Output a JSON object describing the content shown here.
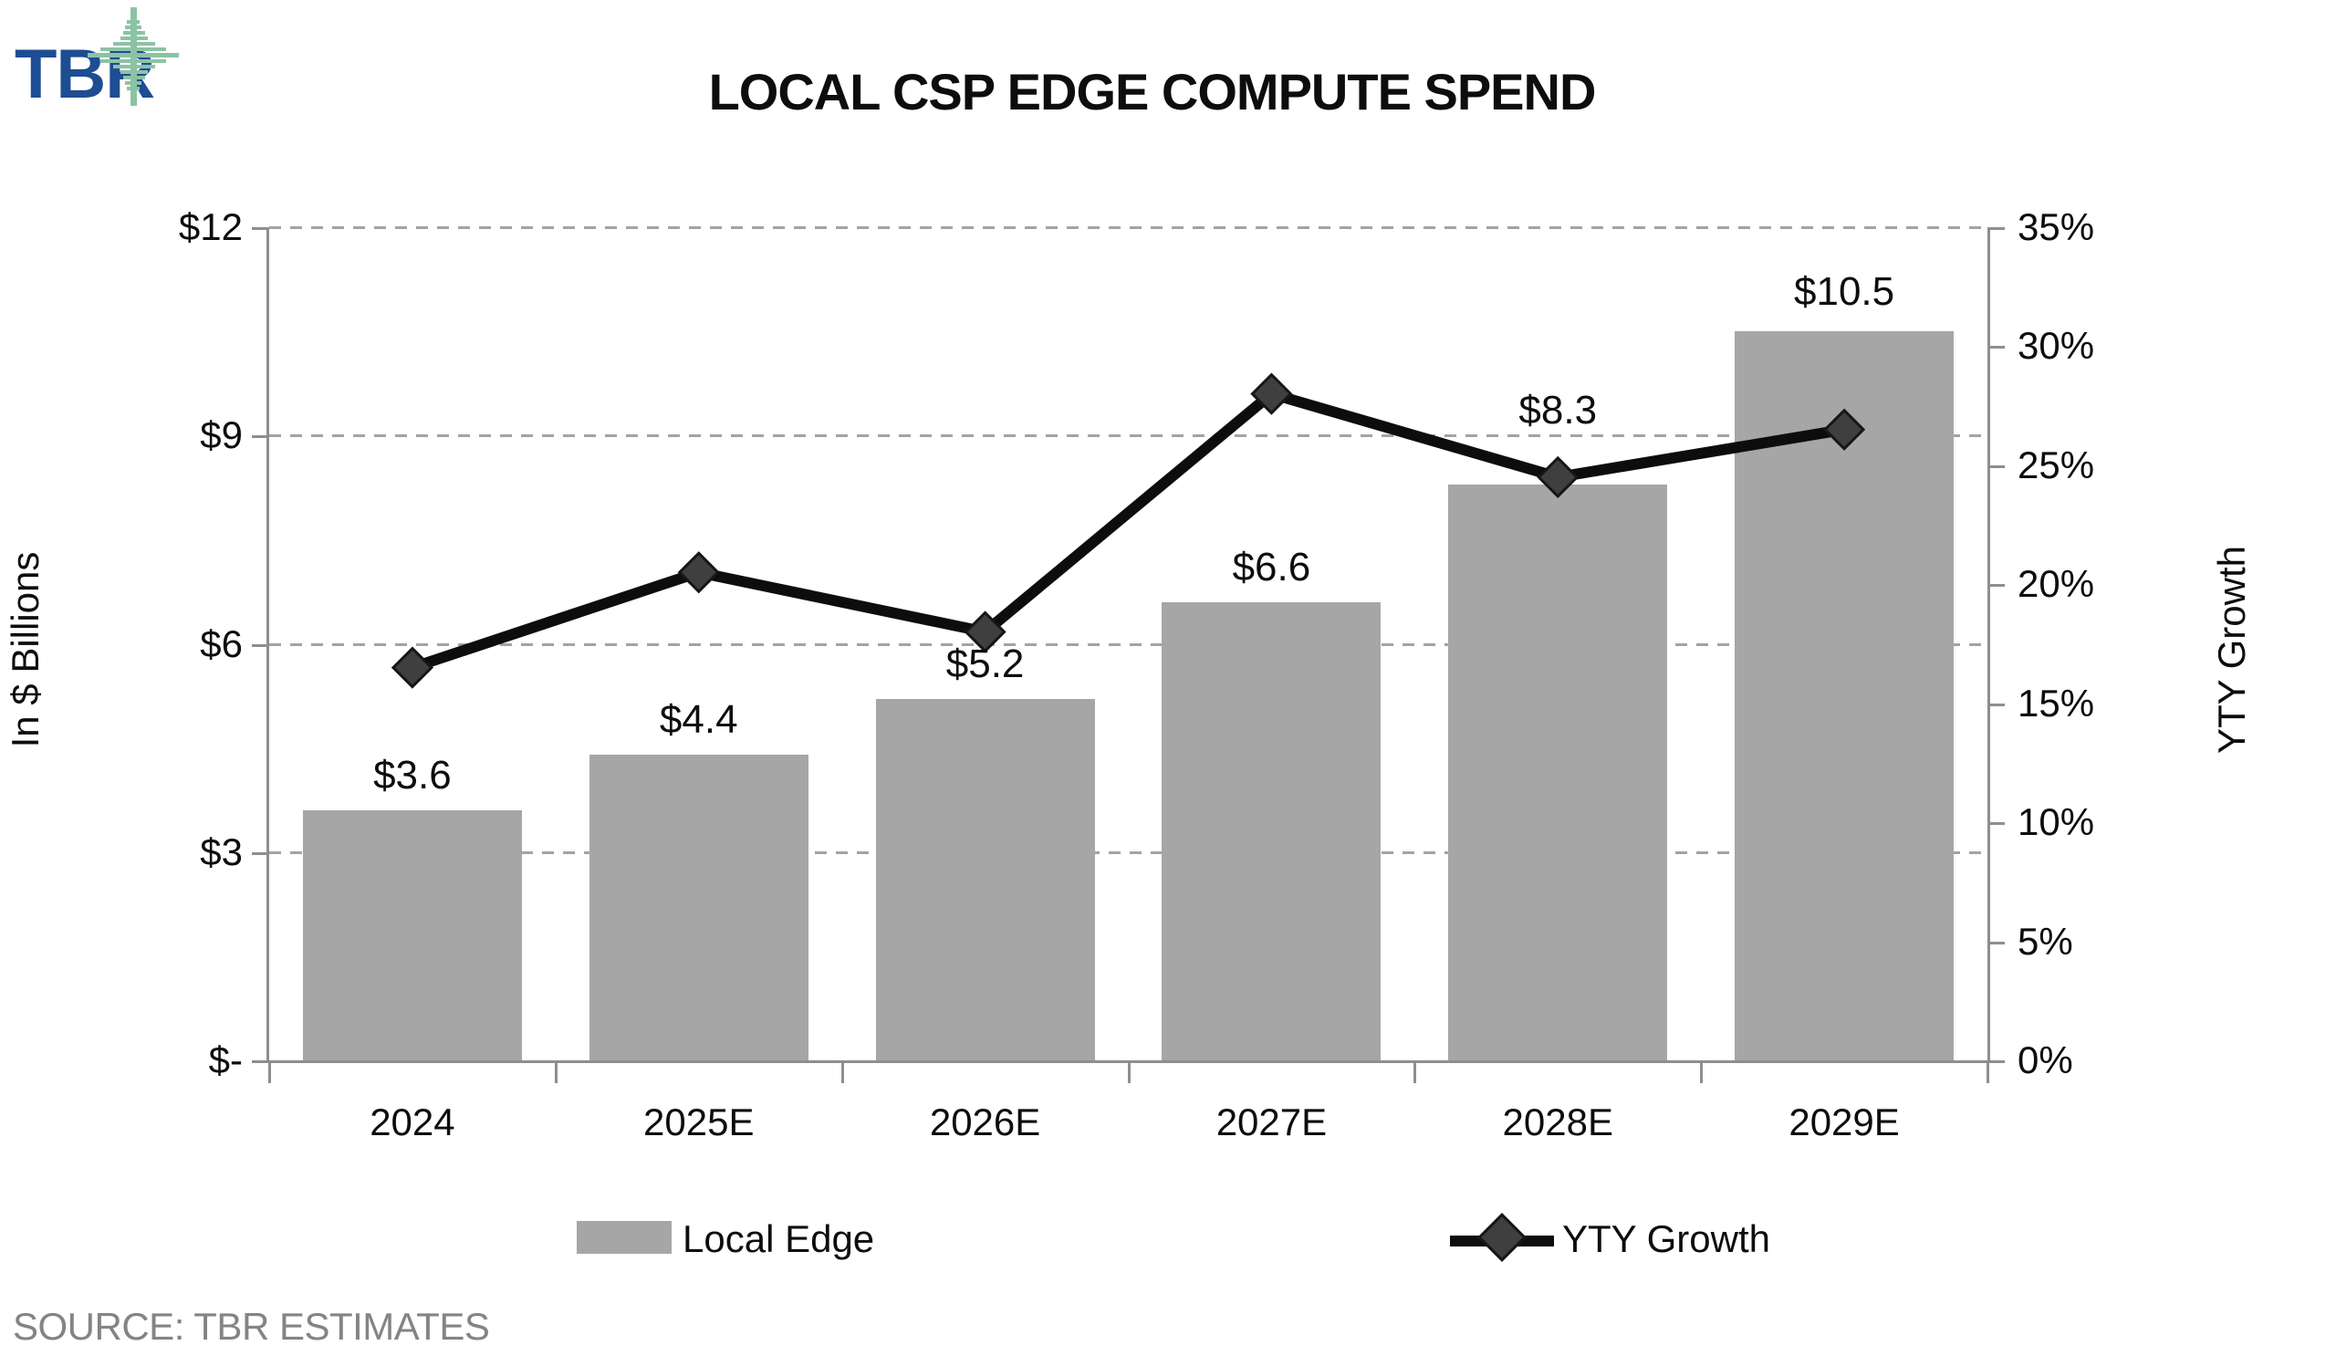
{
  "logo": {
    "text": "TBR",
    "mark": "green-sparkle-icon",
    "text_color": "#1d4d92",
    "mark_color": "#8cc3a4"
  },
  "header": {
    "title": "LOCAL CSP EDGE COMPUTE SPEND"
  },
  "chart_data": {
    "type": "bar",
    "subtype": "combo-bar-line-dual-axis",
    "categories": [
      "2024",
      "2025E",
      "2026E",
      "2027E",
      "2028E",
      "2029E"
    ],
    "series": [
      {
        "name": "Local Edge",
        "type": "bar",
        "axis": "left",
        "unit": "billions USD",
        "values": [
          3.6,
          4.4,
          5.2,
          6.6,
          8.3,
          10.5
        ],
        "data_labels": [
          "$3.6",
          "$4.4",
          "$5.2",
          "$6.6",
          "$8.3",
          "$10.5"
        ],
        "color": "#a6a6a6"
      },
      {
        "name": "YTY Growth",
        "type": "line",
        "axis": "right",
        "unit": "percent",
        "values": [
          16.5,
          20.5,
          18.0,
          28.0,
          24.5,
          26.5
        ],
        "color": "#0d0d0d",
        "marker": "diamond",
        "marker_fill": "#3f3f3f"
      }
    ],
    "left_axis": {
      "title": "In $ Billions",
      "ticks": [
        "$-",
        "$3",
        "$6",
        "$9",
        "$12"
      ],
      "tick_values": [
        0,
        3,
        6,
        9,
        12
      ],
      "range": [
        0,
        12
      ]
    },
    "right_axis": {
      "title": "YTY Growth",
      "ticks": [
        "0%",
        "5%",
        "10%",
        "15%",
        "20%",
        "25%",
        "30%",
        "35%"
      ],
      "tick_values": [
        0,
        5,
        10,
        15,
        20,
        25,
        30,
        35
      ],
      "range": [
        0,
        35
      ]
    },
    "gridlines": {
      "values": [
        3,
        6,
        9,
        12
      ],
      "style": "dashed",
      "color": "#a3a3a3"
    },
    "legend_position": "bottom",
    "legend": [
      {
        "label": "Local Edge",
        "swatch": "bar"
      },
      {
        "label": "YTY Growth",
        "swatch": "line-diamond"
      }
    ],
    "title": "LOCAL CSP EDGE COMPUTE SPEND"
  },
  "footer": {
    "source": "SOURCE: TBR ESTIMATES"
  }
}
